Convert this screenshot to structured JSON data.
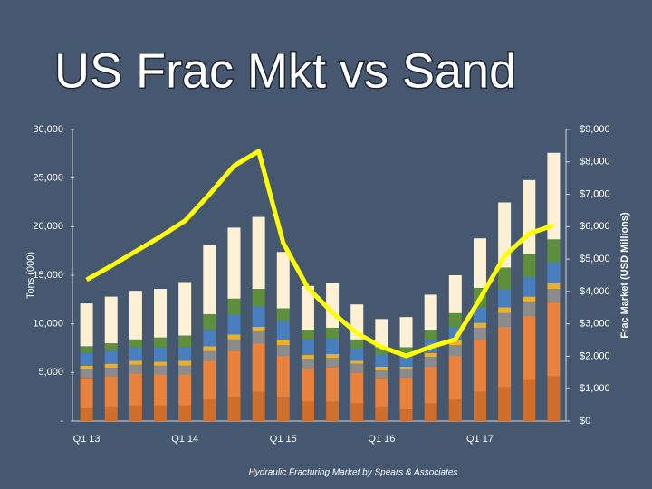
{
  "chart_data": {
    "type": "bar",
    "stacked": true,
    "title": "US Frac Mkt vs Sand",
    "y_label": "Tons (000)",
    "y2_label": "Frac Market (USD Millions)",
    "source": "Hydraulic Fracturing Market by Spears & Associates",
    "categories": [
      "Q1 13",
      null,
      null,
      null,
      "Q1 14",
      null,
      null,
      null,
      "Q1 15",
      null,
      null,
      null,
      "Q1 16",
      null,
      null,
      null,
      "Q1 17",
      null,
      null,
      null
    ],
    "ylim": [
      0,
      30000
    ],
    "yticks": [
      {
        "value": 0,
        "label": "-"
      },
      {
        "value": 5000,
        "label": "5,000"
      },
      {
        "value": 10000,
        "label": "10,000"
      },
      {
        "value": 15000,
        "label": "15,000"
      },
      {
        "value": 20000,
        "label": "20,000"
      },
      {
        "value": 25000,
        "label": "25,000"
      },
      {
        "value": 30000,
        "label": "30,000"
      }
    ],
    "y2lim": [
      0,
      9000
    ],
    "y2ticks": [
      {
        "value": 0,
        "label": "$0"
      },
      {
        "value": 1000,
        "label": "$1,000"
      },
      {
        "value": 2000,
        "label": "$2,000"
      },
      {
        "value": 3000,
        "label": "$3,000"
      },
      {
        "value": 4000,
        "label": "$4,000"
      },
      {
        "value": 5000,
        "label": "$5,000"
      },
      {
        "value": 6000,
        "label": "$6,000"
      },
      {
        "value": 7000,
        "label": "$7,000"
      },
      {
        "value": 8000,
        "label": "$8,000"
      },
      {
        "value": 9000,
        "label": "$9,000"
      }
    ],
    "series": [
      {
        "color": "#d06f2c",
        "values": [
          1400,
          1500,
          1600,
          1600,
          1600,
          2200,
          2500,
          3000,
          2500,
          2000,
          2000,
          1800,
          1500,
          1200,
          1800,
          2200,
          3000,
          3500,
          4200,
          4600
        ]
      },
      {
        "color": "#e8823c",
        "values": [
          3000,
          3100,
          3300,
          3200,
          3200,
          4000,
          4700,
          5000,
          4200,
          3400,
          3500,
          3200,
          2900,
          3300,
          3800,
          4500,
          5300,
          6200,
          6600,
          7600
        ]
      },
      {
        "color": "#8c8c8c",
        "values": [
          1000,
          900,
          900,
          900,
          900,
          1000,
          1200,
          1200,
          1100,
          1000,
          1000,
          900,
          800,
          800,
          1000,
          1100,
          1300,
          1400,
          1400,
          1400
        ]
      },
      {
        "color": "#e9b02d",
        "values": [
          300,
          400,
          400,
          400,
          500,
          500,
          500,
          500,
          600,
          400,
          400,
          300,
          400,
          300,
          400,
          500,
          500,
          600,
          600,
          600
        ]
      },
      {
        "color": "#4a7fbf",
        "values": [
          1300,
          1300,
          1400,
          1500,
          1400,
          1700,
          2000,
          2100,
          1900,
          1600,
          1600,
          1300,
          1200,
          1100,
          1300,
          1400,
          1600,
          1800,
          2000,
          2100
        ]
      },
      {
        "color": "#5e8f3c",
        "values": [
          700,
          800,
          800,
          1000,
          1200,
          1600,
          1700,
          1800,
          1300,
          1000,
          1100,
          900,
          800,
          900,
          1100,
          1400,
          2000,
          2300,
          2400,
          2400
        ]
      },
      {
        "color": "#fdf0d5",
        "values": [
          4400,
          4800,
          5000,
          5000,
          5500,
          7100,
          7300,
          7400,
          5800,
          4500,
          4600,
          3600,
          2900,
          3100,
          3600,
          3900,
          5100,
          6700,
          7600,
          8900
        ]
      },
      {
        "type": "line",
        "axis": "y2",
        "color": "#ffff00",
        "values": [
          4360,
          4790,
          5240,
          5690,
          6180,
          7000,
          7880,
          8330,
          5500,
          4110,
          3350,
          2710,
          2290,
          2010,
          2290,
          2520,
          3770,
          5090,
          5790,
          6040
        ]
      }
    ]
  }
}
